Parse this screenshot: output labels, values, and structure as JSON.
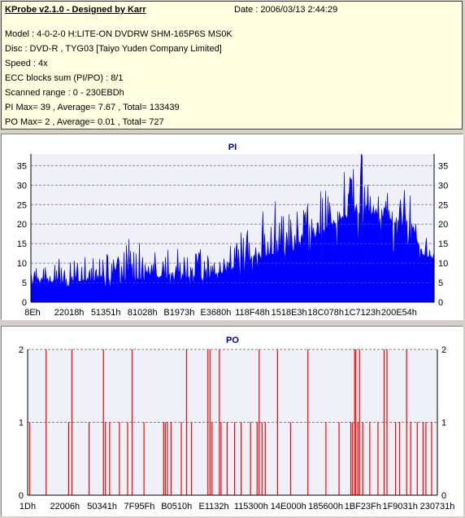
{
  "info": {
    "title": "KProbe v2.1.0 - Designed by Karr",
    "date": "Date : 2006/03/13 2:44:29",
    "lines": [
      "Model : 4-0-2-0 H:LITE-ON DVDRW SHM-165P6S MS0K",
      "Disc : DVD-R , TYG03 [Taiyo Yuden Company Limited]",
      "Speed : 4x",
      "ECC blocks sum (PI/PO) : 8/1",
      "Scanned range : 0 - 230EBDh",
      "PI Max= 39 , Average= 7.67 , Total= 133439",
      "PO Max= 2 , Average= 0.01 , Total= 727"
    ]
  },
  "colors": {
    "pi_fill": "#0000ff",
    "po_line": "#ff0000",
    "plot_bg": "#f0f0f8",
    "grid": "#808080",
    "title": "#000080"
  },
  "chart_data": [
    {
      "type": "area",
      "title": "PI",
      "xlabel": "",
      "ylabel": "",
      "ylim": [
        0,
        38
      ],
      "yticks": [
        0,
        5,
        10,
        15,
        20,
        25,
        30,
        35
      ],
      "xtick_labels": [
        "8Eh",
        "22018h",
        "51351h",
        "81028h",
        "B1973h",
        "E3680h",
        "118F48h",
        "1518E3h",
        "18C078h",
        "1C7123h",
        "200E54h"
      ],
      "grid": true,
      "legend": "none",
      "profile": {
        "x": [
          0,
          0.05,
          0.1,
          0.2,
          0.25,
          0.3,
          0.35,
          0.4,
          0.45,
          0.5,
          0.55,
          0.6,
          0.65,
          0.7,
          0.75,
          0.8,
          0.82,
          0.85,
          0.88,
          0.9,
          0.92,
          0.95,
          0.97,
          1.0
        ],
        "baseline": [
          5,
          5,
          5,
          5.5,
          5.5,
          6,
          6,
          6,
          6.5,
          8,
          11,
          12,
          13,
          16,
          20,
          22,
          23,
          22,
          21,
          20,
          19,
          18,
          12,
          11
        ],
        "peak": [
          11,
          11,
          12,
          13,
          17,
          13,
          14,
          14,
          13,
          16,
          21,
          26,
          26,
          26,
          35,
          35,
          39,
          33,
          30,
          28,
          31,
          31,
          17,
          16
        ]
      }
    },
    {
      "type": "bar",
      "title": "PO",
      "xlabel": "",
      "ylabel": "",
      "ylim": [
        0,
        2
      ],
      "yticks": [
        0,
        1,
        2
      ],
      "xtick_labels": [
        "1Dh",
        "22006h",
        "50341h",
        "7F95Fh",
        "B0510h",
        "E1132h",
        "115300h",
        "14E000h",
        "185600h",
        "1BF23Fh",
        "1F9031h",
        "230731h"
      ],
      "grid": true,
      "legend": "none",
      "x_fraction": [
        0.005,
        0.045,
        0.1,
        0.108,
        0.15,
        0.185,
        0.19,
        0.2,
        0.224,
        0.244,
        0.255,
        0.284,
        0.332,
        0.336,
        0.341,
        0.35,
        0.375,
        0.388,
        0.4,
        0.44,
        0.445,
        0.45,
        0.468,
        0.472,
        0.487,
        0.505,
        0.521,
        0.544,
        0.56,
        0.565,
        0.572,
        0.58,
        0.61,
        0.642,
        0.684,
        0.728,
        0.76,
        0.789,
        0.793,
        0.798,
        0.801,
        0.806,
        0.81,
        0.818,
        0.835,
        0.855,
        0.87,
        0.877,
        0.898,
        0.908,
        0.925,
        0.935,
        0.951,
        0.965,
        0.972,
        0.986
      ],
      "values": [
        1,
        2,
        1,
        2,
        1,
        2,
        1,
        1,
        1,
        1,
        2,
        1,
        1,
        1,
        1,
        1,
        1,
        2,
        1,
        2,
        2,
        1,
        2,
        1,
        1,
        1,
        1,
        1,
        1,
        2,
        1,
        1,
        2,
        1,
        2,
        1,
        1,
        1,
        1,
        2,
        2,
        1,
        2,
        1,
        1,
        1,
        2,
        2,
        1,
        1,
        2,
        1,
        1,
        1,
        1,
        1
      ]
    }
  ]
}
